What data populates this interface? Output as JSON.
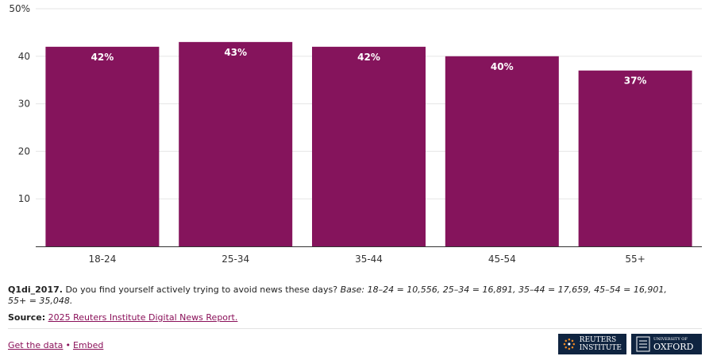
{
  "chart_data": {
    "type": "bar",
    "categories": [
      "18-24",
      "25-34",
      "35-44",
      "45-54",
      "55+"
    ],
    "values": [
      42,
      43,
      42,
      40,
      37
    ],
    "data_labels": [
      "42%",
      "43%",
      "42%",
      "40%",
      "37%"
    ],
    "y_ticks": [
      "50%",
      "40",
      "30",
      "20",
      "10"
    ],
    "y_tick_values": [
      50,
      40,
      30,
      20,
      10
    ],
    "ylim": [
      0,
      50
    ],
    "grid": true,
    "bar_color": "#85145c"
  },
  "notes": {
    "question_id": "Q1di_2017.",
    "question_text": " Do you find yourself actively trying to avoid news these days? ",
    "base": "Base: 18–24 = 10,556, 25–34 = 16,891, 35–44 = 17,659, 45–54 = 16,901, 55+ = 35,048."
  },
  "source": {
    "label": "Source:",
    "link_text": "2025 Reuters Institute Digital News Report."
  },
  "footer": {
    "get_data": "Get the data",
    "separator": "•",
    "embed": "Embed"
  },
  "logos": {
    "reuters_line1": "REUTERS",
    "reuters_line2": "INSTITUTE",
    "oxford_small": "UNIVERSITY OF",
    "oxford_big": "OXFORD"
  }
}
